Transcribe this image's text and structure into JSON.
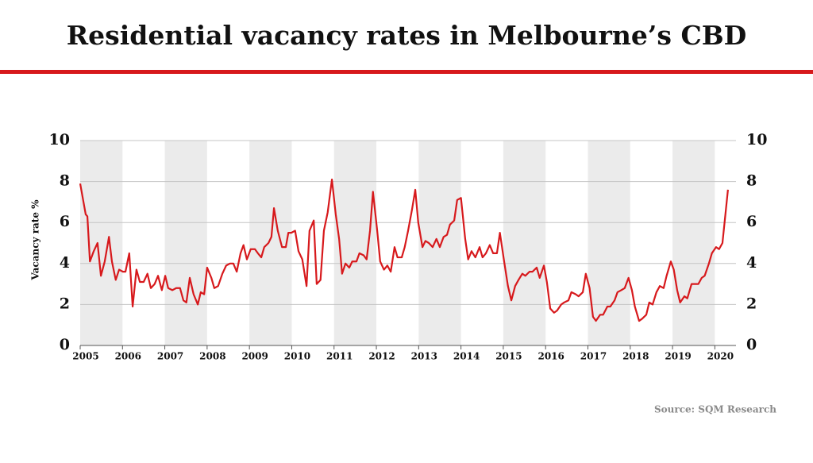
{
  "chart_data": {
    "type": "line",
    "title": "Residential vacancy rates in Melbourne’s CBD",
    "y_label": "Vacancy rate %",
    "source": "Source: SQM Research",
    "color": "#d7191c",
    "grid": true,
    "bands": [
      2005,
      2007,
      2009,
      2011,
      2013,
      2015,
      2017,
      2019
    ],
    "xlim": [
      2005,
      2020.5
    ],
    "xticks": [
      2005,
      2006,
      2007,
      2008,
      2009,
      2010,
      2011,
      2012,
      2013,
      2014,
      2015,
      2016,
      2017,
      2018,
      2019,
      2020
    ],
    "ylim": [
      0,
      10
    ],
    "yticks": [
      0,
      2,
      4,
      6,
      8,
      10
    ],
    "y2lim": [
      0,
      10
    ],
    "y2ticks": [
      0,
      2,
      4,
      6,
      8,
      10
    ],
    "x": [
      2005.0,
      2005.13,
      2005.17,
      2005.23,
      2005.32,
      2005.41,
      2005.49,
      2005.58,
      2005.68,
      2005.75,
      2005.84,
      2005.92,
      2006.01,
      2006.07,
      2006.16,
      2006.24,
      2006.33,
      2006.41,
      2006.5,
      2006.59,
      2006.67,
      2006.76,
      2006.84,
      2006.93,
      2007.01,
      2007.08,
      2007.18,
      2007.27,
      2007.36,
      2007.44,
      2007.51,
      2007.59,
      2007.68,
      2007.78,
      2007.85,
      2007.93,
      2008.0,
      2008.1,
      2008.17,
      2008.26,
      2008.36,
      2008.45,
      2008.54,
      2008.62,
      2008.7,
      2008.79,
      2008.86,
      2008.94,
      2009.03,
      2009.13,
      2009.2,
      2009.28,
      2009.35,
      2009.45,
      2009.52,
      2009.58,
      2009.67,
      2009.77,
      2009.86,
      2009.92,
      2009.99,
      2010.08,
      2010.16,
      2010.25,
      2010.35,
      2010.42,
      2010.52,
      2010.59,
      2010.68,
      2010.76,
      2010.85,
      2010.95,
      2011.04,
      2011.12,
      2011.19,
      2011.27,
      2011.36,
      2011.43,
      2011.53,
      2011.6,
      2011.7,
      2011.77,
      2011.85,
      2011.92,
      2012.02,
      2012.09,
      2012.18,
      2012.26,
      2012.34,
      2012.43,
      2012.5,
      2012.6,
      2012.67,
      2012.75,
      2012.84,
      2012.92,
      2012.99,
      2013.09,
      2013.16,
      2013.24,
      2013.33,
      2013.42,
      2013.5,
      2013.59,
      2013.67,
      2013.74,
      2013.84,
      2013.91,
      2014.0,
      2014.1,
      2014.17,
      2014.25,
      2014.34,
      2014.44,
      2014.51,
      2014.59,
      2014.68,
      2014.76,
      2014.85,
      2014.92,
      2015.02,
      2015.11,
      2015.19,
      2015.28,
      2015.36,
      2015.45,
      2015.52,
      2015.62,
      2015.69,
      2015.79,
      2015.86,
      2015.96,
      2016.03,
      2016.11,
      2016.2,
      2016.27,
      2016.37,
      2016.44,
      2016.54,
      2016.61,
      2016.71,
      2016.78,
      2016.88,
      2016.95,
      2017.04,
      2017.12,
      2017.19,
      2017.29,
      2017.36,
      2017.46,
      2017.53,
      2017.63,
      2017.7,
      2017.79,
      2017.87,
      2017.96,
      2018.04,
      2018.11,
      2018.21,
      2018.28,
      2018.38,
      2018.45,
      2018.53,
      2018.62,
      2018.7,
      2018.79,
      2018.86,
      2018.96,
      2019.03,
      2019.11,
      2019.18,
      2019.28,
      2019.35,
      2019.45,
      2019.52,
      2019.61,
      2019.69,
      2019.76,
      2019.86,
      2019.93,
      2020.03,
      2020.1,
      2020.18,
      2020.31
    ],
    "series": [
      {
        "name": "Vacancy rate",
        "color": "#d7191c",
        "values": [
          7.9,
          6.4,
          6.3,
          4.1,
          4.6,
          5.0,
          3.4,
          4.1,
          5.3,
          4.1,
          3.2,
          3.7,
          3.6,
          3.6,
          4.5,
          1.9,
          3.7,
          3.1,
          3.1,
          3.5,
          2.8,
          3.0,
          3.4,
          2.7,
          3.4,
          2.8,
          2.7,
          2.8,
          2.8,
          2.2,
          2.1,
          3.3,
          2.5,
          2.0,
          2.6,
          2.5,
          3.8,
          3.3,
          2.8,
          2.9,
          3.5,
          3.9,
          4.0,
          4.0,
          3.6,
          4.5,
          4.9,
          4.2,
          4.7,
          4.7,
          4.5,
          4.3,
          4.8,
          5.0,
          5.3,
          6.7,
          5.6,
          4.8,
          4.8,
          5.5,
          5.5,
          5.6,
          4.6,
          4.2,
          2.9,
          5.6,
          6.1,
          3.0,
          3.2,
          5.6,
          6.5,
          8.1,
          6.4,
          5.2,
          3.5,
          4.0,
          3.8,
          4.1,
          4.1,
          4.5,
          4.4,
          4.2,
          5.6,
          7.5,
          5.6,
          4.1,
          3.7,
          3.9,
          3.6,
          4.8,
          4.3,
          4.3,
          4.8,
          5.6,
          6.6,
          7.6,
          6.0,
          4.8,
          5.1,
          5.0,
          4.8,
          5.2,
          4.8,
          5.3,
          5.4,
          5.9,
          6.1,
          7.1,
          7.2,
          5.2,
          4.2,
          4.6,
          4.3,
          4.8,
          4.3,
          4.5,
          4.9,
          4.5,
          4.5,
          5.5,
          4.1,
          2.9,
          2.2,
          2.9,
          3.2,
          3.5,
          3.4,
          3.6,
          3.6,
          3.8,
          3.3,
          3.9,
          3.1,
          1.8,
          1.6,
          1.7,
          2.0,
          2.1,
          2.2,
          2.6,
          2.5,
          2.4,
          2.6,
          3.5,
          2.8,
          1.4,
          1.2,
          1.5,
          1.5,
          1.9,
          1.9,
          2.2,
          2.6,
          2.7,
          2.8,
          3.3,
          2.7,
          1.9,
          1.2,
          1.3,
          1.5,
          2.1,
          2.0,
          2.6,
          2.9,
          2.8,
          3.4,
          4.1,
          3.7,
          2.7,
          2.1,
          2.4,
          2.3,
          3.0,
          3.0,
          3.0,
          3.3,
          3.4,
          4.0,
          4.5,
          4.8,
          4.7,
          5.0,
          7.6
        ]
      }
    ]
  }
}
